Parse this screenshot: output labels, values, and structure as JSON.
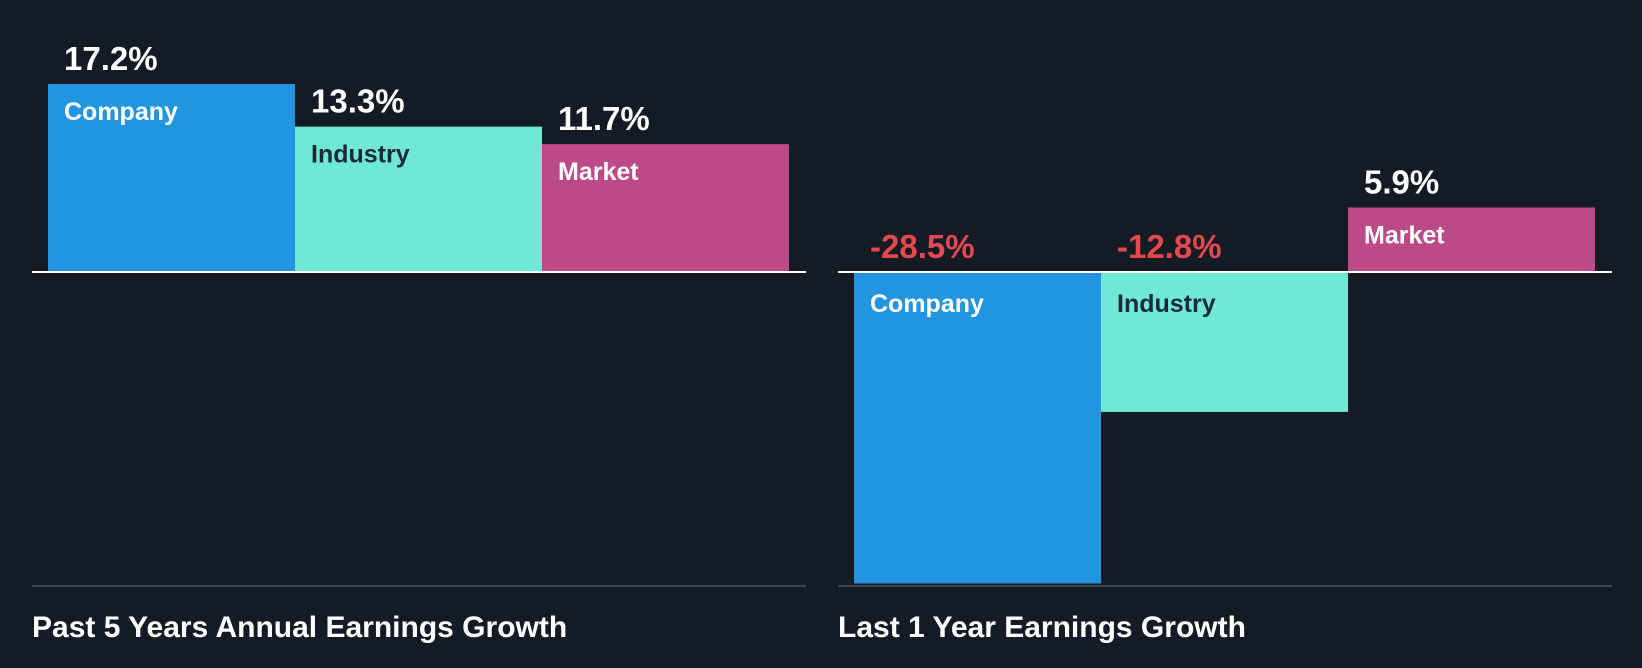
{
  "colors": {
    "background": "#151b24",
    "company": "#2394e0",
    "industry": "#6fe9d6",
    "market": "#bc4a88",
    "positive_label": "#ffffff",
    "negative_label": "#e5484d",
    "zero_line": "#ffffff",
    "base_line": "#3c434d"
  },
  "chart_data": [
    {
      "type": "bar",
      "title": "Past 5 Years Annual Earnings Growth",
      "categories": [
        "Company",
        "Industry",
        "Market"
      ],
      "values": [
        17.2,
        13.3,
        11.7
      ],
      "value_labels": [
        "17.2%",
        "13.3%",
        "11.7%"
      ],
      "unit": "%",
      "ylim": [
        -28.5,
        17.2
      ],
      "grid": false,
      "legend": "none"
    },
    {
      "type": "bar",
      "title": "Last 1 Year Earnings Growth",
      "categories": [
        "Company",
        "Industry",
        "Market"
      ],
      "values": [
        -28.5,
        -12.8,
        5.9
      ],
      "value_labels": [
        "-28.5%",
        "-12.8%",
        "5.9%"
      ],
      "unit": "%",
      "ylim": [
        -28.5,
        17.2
      ],
      "grid": false,
      "legend": "none"
    }
  ]
}
